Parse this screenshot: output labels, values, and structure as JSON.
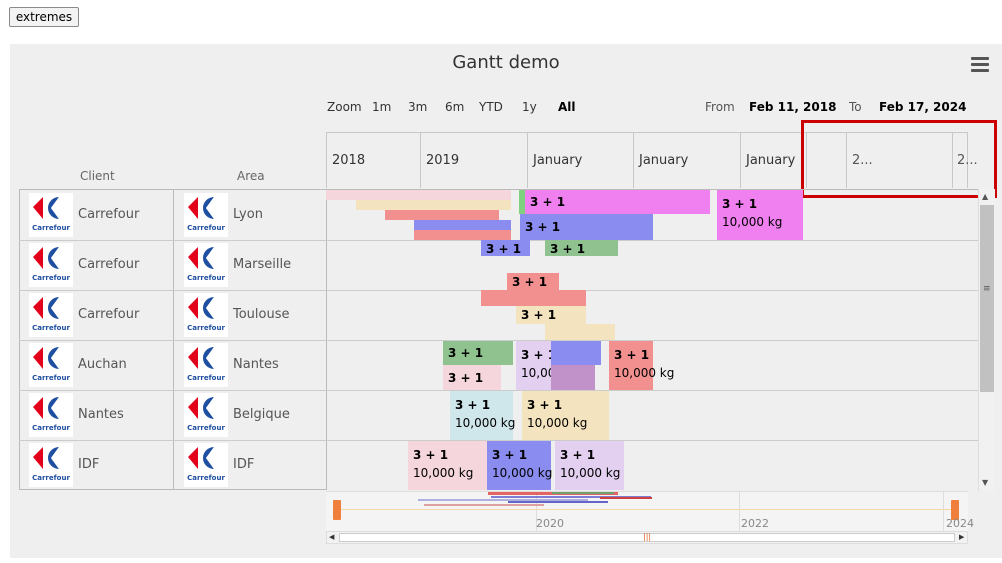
{
  "toolbar": {
    "extremes_label": "extremes"
  },
  "chart": {
    "title": "Gantt demo",
    "range_selector": {
      "zoom_label": "Zoom",
      "buttons": [
        "1m",
        "3m",
        "6m",
        "YTD",
        "1y",
        "All"
      ],
      "selected": "All",
      "from_label": "From",
      "from_value": "Feb 11, 2018",
      "to_label": "To",
      "to_value": "Feb 17, 2024"
    },
    "columns": {
      "client": "Client",
      "area": "Area"
    },
    "axis_labels": [
      "2018",
      "2019",
      "January",
      "January",
      "January",
      "2...",
      "2..."
    ],
    "logo_text": "Carrefour",
    "rows": [
      {
        "client": "Carrefour",
        "area": "Lyon"
      },
      {
        "client": "Carrefour",
        "area": "Marseille"
      },
      {
        "client": "Carrefour",
        "area": "Toulouse"
      },
      {
        "client": "Auchan",
        "area": "Nantes"
      },
      {
        "client": "Nantes",
        "area": "Belgique"
      },
      {
        "client": "IDF",
        "area": "IDF"
      }
    ],
    "bar_labels": {
      "count": "3 + 1",
      "weight": "10,000 kg"
    },
    "navigator_years": [
      "2020",
      "2022",
      "2024"
    ],
    "colors": {
      "pink_light": "#f4d6dc",
      "cream": "#f3e3be",
      "salmon": "#f29090",
      "blue": "#8a8cf0",
      "magenta": "#f080f0",
      "green": "#8fc28f",
      "teal_light": "#cfe6ea",
      "lavender": "#e3d0f0",
      "mauve": "#c191c9",
      "highlight": "#cc0000",
      "handle": "#f07f3c"
    }
  }
}
